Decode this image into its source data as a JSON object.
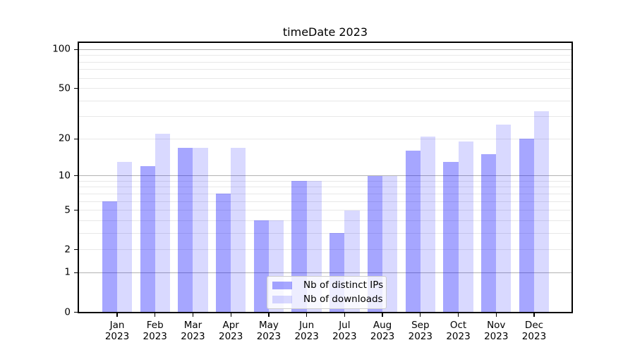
{
  "title": "timeDate 2023",
  "chart_data": {
    "type": "bar",
    "title": "timeDate 2023",
    "categories": [
      "Jan",
      "Feb",
      "Mar",
      "Apr",
      "May",
      "Jun",
      "Jul",
      "Aug",
      "Sep",
      "Oct",
      "Nov",
      "Dec"
    ],
    "category_year": "2023",
    "series": [
      {
        "name": "Nb of distinct IPs",
        "key": "distinct-ips",
        "color": "rgba(0,0,255,0.35)",
        "values": [
          6,
          12,
          17,
          7,
          4,
          9,
          3,
          10,
          16,
          13,
          15,
          20
        ]
      },
      {
        "name": "Nb of downloads",
        "key": "downloads",
        "color": "rgba(0,0,255,0.15)",
        "values": [
          13,
          22,
          17,
          17,
          4,
          9,
          5,
          10,
          21,
          19,
          26,
          33
        ]
      }
    ],
    "yscale": "log1p",
    "ylim": [
      0,
      112.3
    ],
    "xlabel": "",
    "ylabel": "",
    "yticks": [
      0,
      1,
      2,
      5,
      10,
      20,
      50,
      100
    ],
    "gridlines_major": [
      1,
      10,
      100
    ],
    "gridlines_minor": [
      2,
      3,
      4,
      5,
      6,
      7,
      8,
      9,
      20,
      30,
      40,
      50,
      60,
      70,
      80,
      90
    ],
    "grid": true,
    "legend_position": "lower center",
    "colors": {
      "major_grid": "#b2b2b2",
      "minor_grid": "#e8e8e8",
      "spine": "#000000",
      "text": "#000000",
      "background": "#ffffff"
    }
  }
}
